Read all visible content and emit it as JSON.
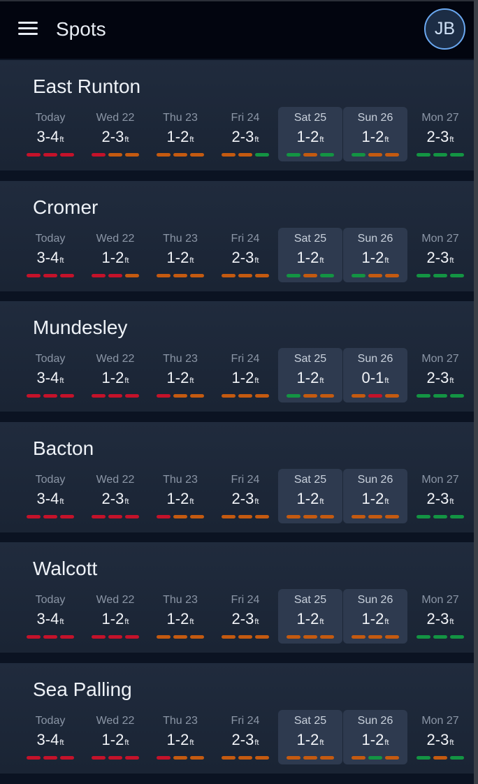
{
  "header": {
    "title": "Spots",
    "avatar_initials": "JB"
  },
  "unit": "ft",
  "colors": {
    "poor": "#c4122a",
    "fair": "#c45a10",
    "good": "#139443"
  },
  "spots": [
    {
      "name": "East Runton",
      "days": [
        {
          "label": "Today",
          "height": "3-4",
          "weekend": false,
          "bars": [
            "red",
            "red",
            "red"
          ]
        },
        {
          "label": "Wed 22",
          "height": "2-3",
          "weekend": false,
          "bars": [
            "red",
            "orange",
            "orange"
          ]
        },
        {
          "label": "Thu 23",
          "height": "1-2",
          "weekend": false,
          "bars": [
            "orange",
            "orange",
            "orange"
          ]
        },
        {
          "label": "Fri 24",
          "height": "2-3",
          "weekend": false,
          "bars": [
            "orange",
            "orange",
            "green"
          ]
        },
        {
          "label": "Sat 25",
          "height": "1-2",
          "weekend": true,
          "bars": [
            "green",
            "orange",
            "green"
          ]
        },
        {
          "label": "Sun 26",
          "height": "1-2",
          "weekend": true,
          "bars": [
            "green",
            "orange",
            "orange"
          ]
        },
        {
          "label": "Mon 27",
          "height": "2-3",
          "weekend": false,
          "bars": [
            "green",
            "green",
            "green"
          ]
        }
      ]
    },
    {
      "name": "Cromer",
      "days": [
        {
          "label": "Today",
          "height": "3-4",
          "weekend": false,
          "bars": [
            "red",
            "red",
            "red"
          ]
        },
        {
          "label": "Wed 22",
          "height": "1-2",
          "weekend": false,
          "bars": [
            "red",
            "red",
            "orange"
          ]
        },
        {
          "label": "Thu 23",
          "height": "1-2",
          "weekend": false,
          "bars": [
            "orange",
            "orange",
            "orange"
          ]
        },
        {
          "label": "Fri 24",
          "height": "2-3",
          "weekend": false,
          "bars": [
            "orange",
            "orange",
            "orange"
          ]
        },
        {
          "label": "Sat 25",
          "height": "1-2",
          "weekend": true,
          "bars": [
            "green",
            "orange",
            "green"
          ]
        },
        {
          "label": "Sun 26",
          "height": "1-2",
          "weekend": true,
          "bars": [
            "green",
            "orange",
            "orange"
          ]
        },
        {
          "label": "Mon 27",
          "height": "2-3",
          "weekend": false,
          "bars": [
            "green",
            "green",
            "green"
          ]
        }
      ]
    },
    {
      "name": "Mundesley",
      "days": [
        {
          "label": "Today",
          "height": "3-4",
          "weekend": false,
          "bars": [
            "red",
            "red",
            "red"
          ]
        },
        {
          "label": "Wed 22",
          "height": "1-2",
          "weekend": false,
          "bars": [
            "red",
            "red",
            "red"
          ]
        },
        {
          "label": "Thu 23",
          "height": "1-2",
          "weekend": false,
          "bars": [
            "red",
            "orange",
            "orange"
          ]
        },
        {
          "label": "Fri 24",
          "height": "1-2",
          "weekend": false,
          "bars": [
            "orange",
            "orange",
            "orange"
          ]
        },
        {
          "label": "Sat 25",
          "height": "1-2",
          "weekend": true,
          "bars": [
            "green",
            "orange",
            "orange"
          ]
        },
        {
          "label": "Sun 26",
          "height": "0-1",
          "weekend": true,
          "bars": [
            "orange",
            "red",
            "orange"
          ]
        },
        {
          "label": "Mon 27",
          "height": "2-3",
          "weekend": false,
          "bars": [
            "green",
            "green",
            "green"
          ]
        }
      ]
    },
    {
      "name": "Bacton",
      "days": [
        {
          "label": "Today",
          "height": "3-4",
          "weekend": false,
          "bars": [
            "red",
            "red",
            "red"
          ]
        },
        {
          "label": "Wed 22",
          "height": "2-3",
          "weekend": false,
          "bars": [
            "red",
            "red",
            "red"
          ]
        },
        {
          "label": "Thu 23",
          "height": "1-2",
          "weekend": false,
          "bars": [
            "red",
            "orange",
            "orange"
          ]
        },
        {
          "label": "Fri 24",
          "height": "2-3",
          "weekend": false,
          "bars": [
            "orange",
            "orange",
            "orange"
          ]
        },
        {
          "label": "Sat 25",
          "height": "1-2",
          "weekend": true,
          "bars": [
            "orange",
            "orange",
            "orange"
          ]
        },
        {
          "label": "Sun 26",
          "height": "1-2",
          "weekend": true,
          "bars": [
            "orange",
            "orange",
            "orange"
          ]
        },
        {
          "label": "Mon 27",
          "height": "2-3",
          "weekend": false,
          "bars": [
            "green",
            "green",
            "green"
          ]
        }
      ]
    },
    {
      "name": "Walcott",
      "days": [
        {
          "label": "Today",
          "height": "3-4",
          "weekend": false,
          "bars": [
            "red",
            "red",
            "red"
          ]
        },
        {
          "label": "Wed 22",
          "height": "1-2",
          "weekend": false,
          "bars": [
            "red",
            "red",
            "red"
          ]
        },
        {
          "label": "Thu 23",
          "height": "1-2",
          "weekend": false,
          "bars": [
            "orange",
            "orange",
            "orange"
          ]
        },
        {
          "label": "Fri 24",
          "height": "2-3",
          "weekend": false,
          "bars": [
            "orange",
            "orange",
            "orange"
          ]
        },
        {
          "label": "Sat 25",
          "height": "1-2",
          "weekend": true,
          "bars": [
            "orange",
            "orange",
            "orange"
          ]
        },
        {
          "label": "Sun 26",
          "height": "1-2",
          "weekend": true,
          "bars": [
            "orange",
            "orange",
            "orange"
          ]
        },
        {
          "label": "Mon 27",
          "height": "2-3",
          "weekend": false,
          "bars": [
            "green",
            "green",
            "green"
          ]
        }
      ]
    },
    {
      "name": "Sea Palling",
      "days": [
        {
          "label": "Today",
          "height": "3-4",
          "weekend": false,
          "bars": [
            "red",
            "red",
            "red"
          ]
        },
        {
          "label": "Wed 22",
          "height": "1-2",
          "weekend": false,
          "bars": [
            "red",
            "red",
            "red"
          ]
        },
        {
          "label": "Thu 23",
          "height": "1-2",
          "weekend": false,
          "bars": [
            "red",
            "orange",
            "orange"
          ]
        },
        {
          "label": "Fri 24",
          "height": "2-3",
          "weekend": false,
          "bars": [
            "orange",
            "orange",
            "orange"
          ]
        },
        {
          "label": "Sat 25",
          "height": "1-2",
          "weekend": true,
          "bars": [
            "orange",
            "orange",
            "orange"
          ]
        },
        {
          "label": "Sun 26",
          "height": "1-2",
          "weekend": true,
          "bars": [
            "orange",
            "green",
            "orange"
          ]
        },
        {
          "label": "Mon 27",
          "height": "2-3",
          "weekend": false,
          "bars": [
            "green",
            "orange",
            "green"
          ]
        }
      ]
    }
  ]
}
